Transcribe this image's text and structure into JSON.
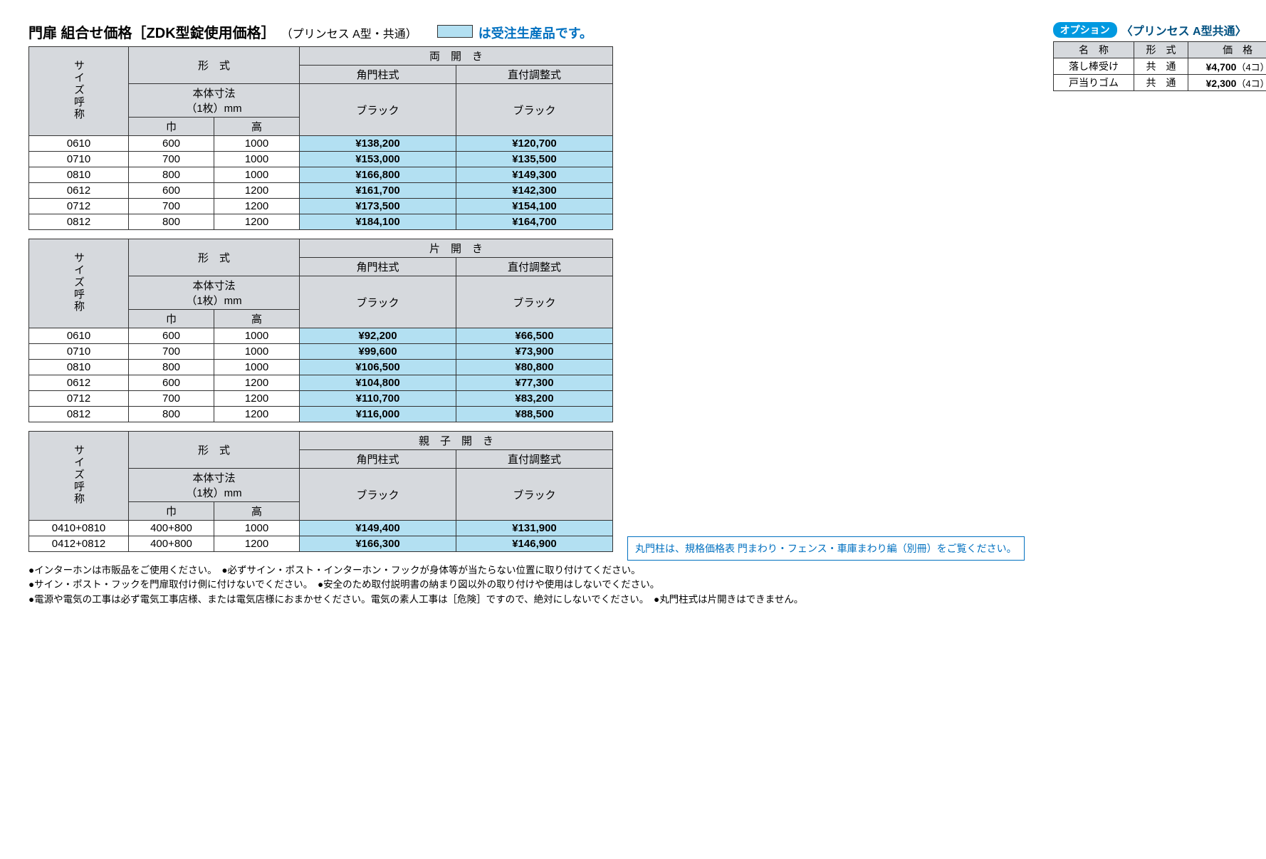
{
  "title": {
    "main": "門扉 組合せ価格［ZDK型錠使用価格］",
    "paren": "（プリンセス A型・共通）",
    "legend_text": "は受注生産品です。"
  },
  "common_headers": {
    "size_label": "サイズ呼称",
    "style_label": "形　式",
    "body_dim_1": "本体寸法",
    "body_dim_2": "（1枚）mm",
    "width_label": "巾",
    "height_label": "高",
    "col_style_a": "角門柱式",
    "col_style_b": "直付調整式",
    "color_label": "ブラック"
  },
  "tables": [
    {
      "group_label": "両　開　き",
      "rows": [
        {
          "size": "0610",
          "w": "600",
          "h": "1000",
          "a": "¥138,200",
          "b": "¥120,700"
        },
        {
          "size": "0710",
          "w": "700",
          "h": "1000",
          "a": "¥153,000",
          "b": "¥135,500"
        },
        {
          "size": "0810",
          "w": "800",
          "h": "1000",
          "a": "¥166,800",
          "b": "¥149,300"
        },
        {
          "size": "0612",
          "w": "600",
          "h": "1200",
          "a": "¥161,700",
          "b": "¥142,300"
        },
        {
          "size": "0712",
          "w": "700",
          "h": "1200",
          "a": "¥173,500",
          "b": "¥154,100"
        },
        {
          "size": "0812",
          "w": "800",
          "h": "1200",
          "a": "¥184,100",
          "b": "¥164,700"
        }
      ]
    },
    {
      "group_label": "片　開　き",
      "rows": [
        {
          "size": "0610",
          "w": "600",
          "h": "1000",
          "a": "¥92,200",
          "b": "¥66,500"
        },
        {
          "size": "0710",
          "w": "700",
          "h": "1000",
          "a": "¥99,600",
          "b": "¥73,900"
        },
        {
          "size": "0810",
          "w": "800",
          "h": "1000",
          "a": "¥106,500",
          "b": "¥80,800"
        },
        {
          "size": "0612",
          "w": "600",
          "h": "1200",
          "a": "¥104,800",
          "b": "¥77,300"
        },
        {
          "size": "0712",
          "w": "700",
          "h": "1200",
          "a": "¥110,700",
          "b": "¥83,200"
        },
        {
          "size": "0812",
          "w": "800",
          "h": "1200",
          "a": "¥116,000",
          "b": "¥88,500"
        }
      ]
    },
    {
      "group_label": "親　子　開　き",
      "rows": [
        {
          "size": "0410+0810",
          "w": "400+800",
          "h": "1000",
          "a": "¥149,400",
          "b": "¥131,900"
        },
        {
          "size": "0412+0812",
          "w": "400+800",
          "h": "1200",
          "a": "¥166,300",
          "b": "¥146,900"
        }
      ]
    }
  ],
  "option_box": {
    "pill": "オプション",
    "title": "〈プリンセス A型共通〉",
    "headers": {
      "name": "名　称",
      "style": "形　式",
      "price": "価　格"
    },
    "rows": [
      {
        "name": "落し棒受け",
        "style": "共　通",
        "price": "¥4,700",
        "qty": "（4コ）"
      },
      {
        "name": "戸当りゴム",
        "style": "共　通",
        "price": "¥2,300",
        "qty": "（4コ）"
      }
    ]
  },
  "blue_note": "丸門柱は、規格価格表 門まわり・フェンス・車庫まわり編（別冊）をご覧ください。",
  "footer_notes": [
    "●インターホンは市販品をご使用ください。　●必ずサイン・ポスト・インターホン・フックが身体等が当たらない位置に取り付けてください。",
    "●サイン・ポスト・フックを門扉取付け側に付けないでください。　●安全のため取付説明書の納まり図以外の取り付けや使用はしないでください。",
    "●電源や電気の工事は必ず電気工事店様、または電気店様におまかせください。電気の素人工事は［危険］ですので、絶対にしないでください。　●丸門柱式は片開きはできません。"
  ],
  "colors": {
    "header_bg": "#d6d9dd",
    "blue_bg": "#b3e0f2",
    "accent_blue": "#0070c0",
    "pill_bg": "#0099e0"
  }
}
